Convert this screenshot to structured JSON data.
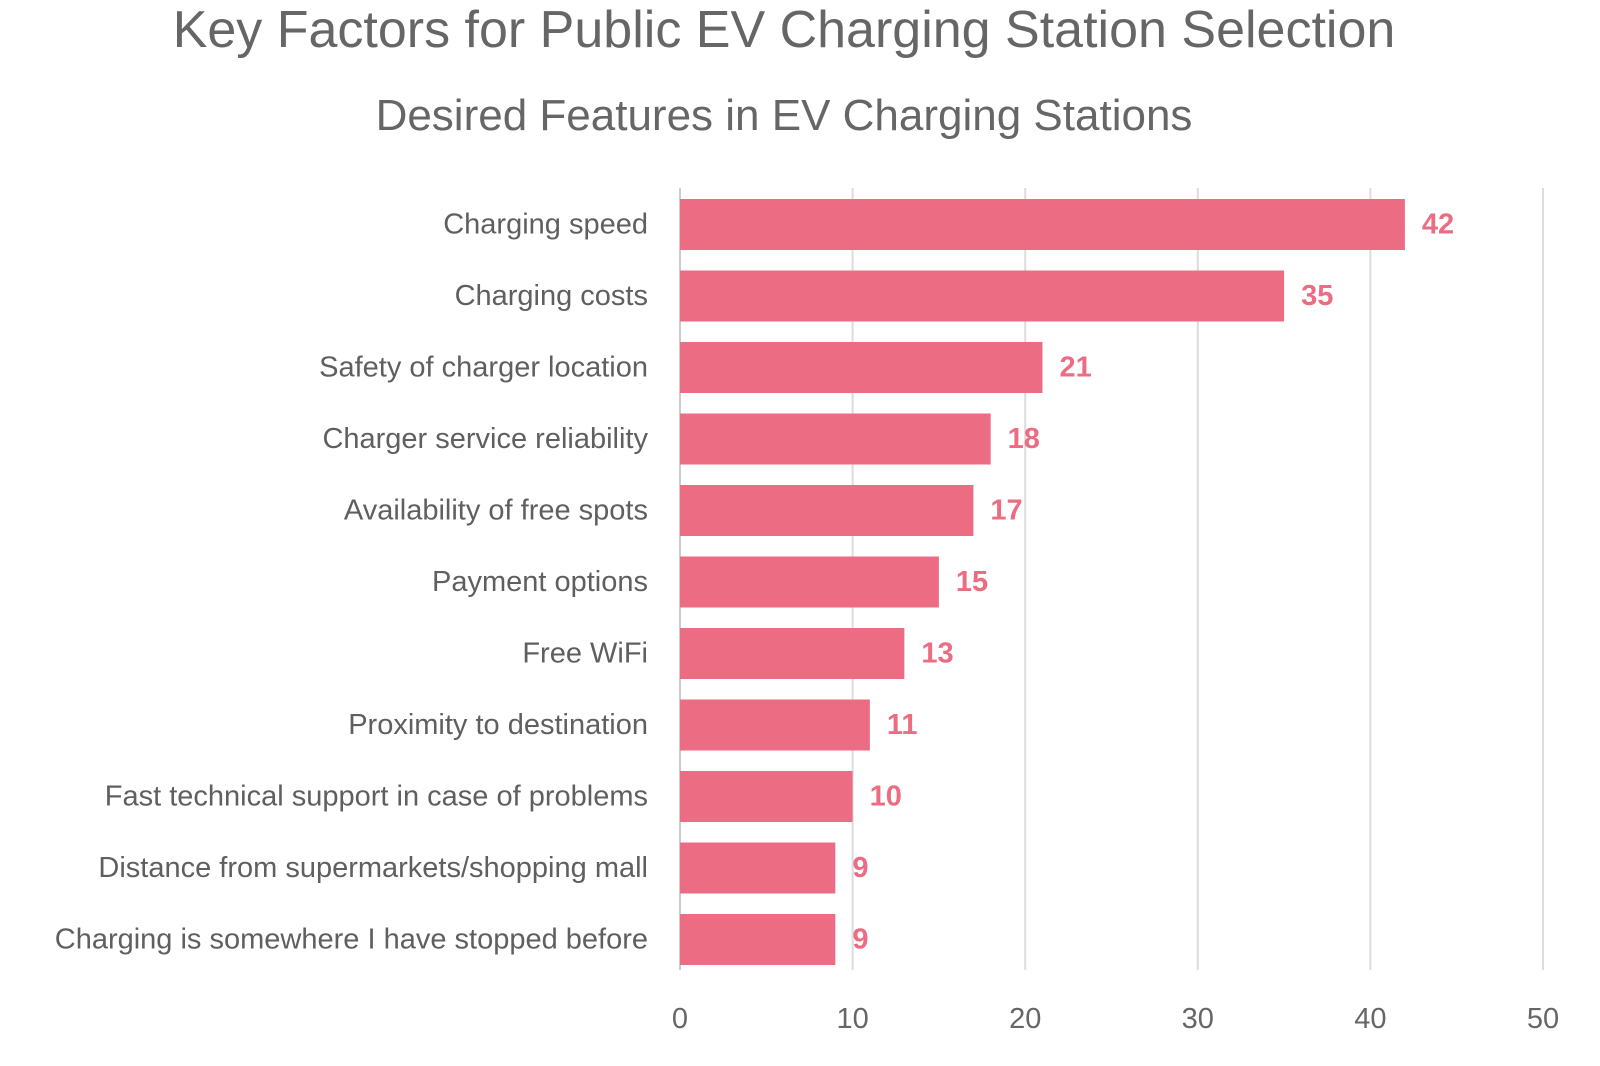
{
  "chart_data": {
    "type": "bar",
    "orientation": "horizontal",
    "title": "Key Factors for Public EV Charging Station Selection",
    "subtitle": "Desired Features in EV Charging Stations",
    "categories": [
      "Charging speed",
      "Charging costs",
      "Safety of charger location",
      "Charger service reliability",
      "Availability of free spots",
      "Payment options",
      "Free WiFi",
      "Proximity to destination",
      "Fast technical support in case of problems",
      "Distance from supermarkets/shopping mall",
      "Charging is somewhere I have stopped before"
    ],
    "values": [
      42,
      35,
      21,
      18,
      17,
      15,
      13,
      11,
      10,
      9,
      9
    ],
    "xlabel": "",
    "ylabel": "",
    "xlim": [
      0,
      50
    ],
    "xticks": [
      0,
      10,
      20,
      30,
      40,
      50
    ],
    "grid": "vertical",
    "data_labels": true,
    "colors": {
      "bar": "#ec6d83",
      "label": "#ec6d83",
      "grid": "#dddddd",
      "text": "#666666"
    }
  }
}
